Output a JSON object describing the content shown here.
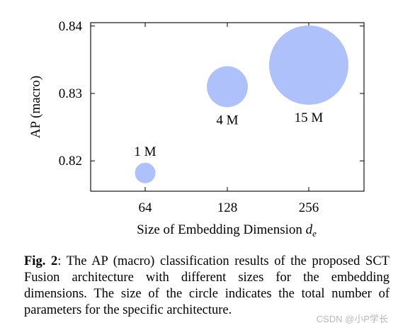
{
  "chart_data": {
    "type": "scatter",
    "bubble": true,
    "xlabel": "Size of Embedding Dimension",
    "xlabel_symbol": "d",
    "xlabel_subscript": "e",
    "ylabel": "AP (macro)",
    "categories": [
      "64",
      "128",
      "256"
    ],
    "ylim": [
      0.8155,
      0.8405
    ],
    "yticks": [
      0.82,
      0.83,
      0.84
    ],
    "ytick_labels": [
      "0.82",
      "0.83",
      "0.84"
    ],
    "grid": false,
    "color": "#aec1fa",
    "points": [
      {
        "x": "64",
        "y": 0.8182,
        "params_millions": 1,
        "label": "1 M"
      },
      {
        "x": "128",
        "y": 0.831,
        "params_millions": 4,
        "label": "4 M"
      },
      {
        "x": "256",
        "y": 0.8342,
        "params_millions": 15,
        "label": "15 M"
      }
    ]
  },
  "caption": {
    "prefix": "Fig. 2",
    "text": ":  The AP (macro) classification results of the proposed SCT Fusion architecture with different sizes for the embedding dimensions. The size of the circle indicates the total number of parameters for the specific architecture."
  },
  "watermark": "CSDN @小P学长"
}
